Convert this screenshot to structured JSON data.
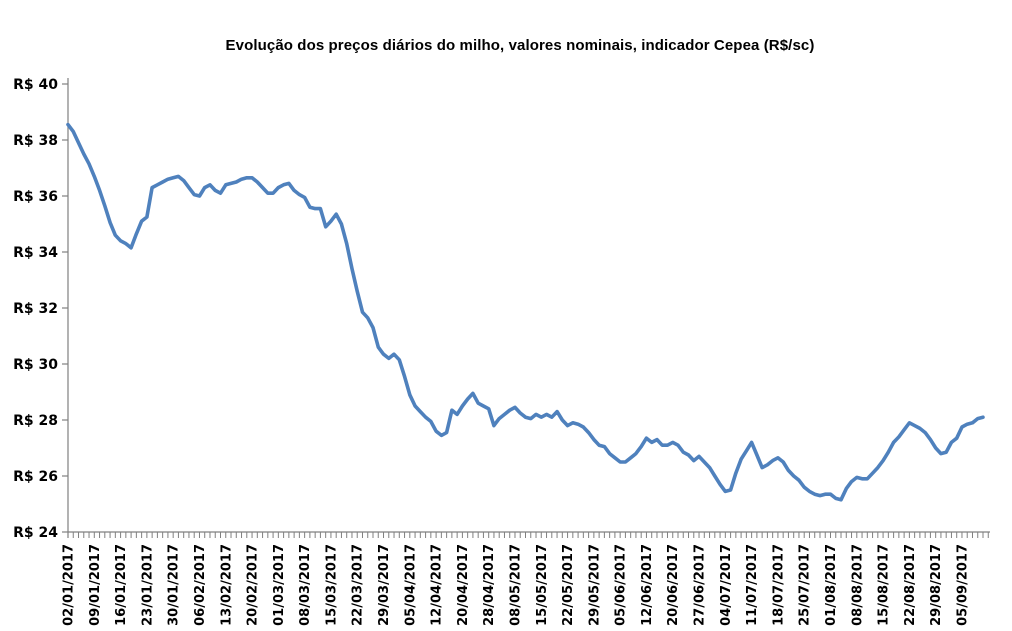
{
  "chart_data": {
    "type": "line",
    "title": "Evolução dos preços diários do milho, valores nominais, indicador Cepea (R$/sc)",
    "xlabel": "",
    "ylabel": "",
    "ylim": [
      24,
      40
    ],
    "y_tick_step": 2,
    "y_tick_labels": [
      "R$ 24",
      "R$ 26",
      "R$ 28",
      "R$ 30",
      "R$ 32",
      "R$ 34",
      "R$ 36",
      "R$ 38",
      "R$ 40"
    ],
    "grid": false,
    "legend": false,
    "x_labels": [
      "02/01/2017",
      "09/01/2017",
      "16/01/2017",
      "23/01/2017",
      "30/01/2017",
      "06/02/2017",
      "13/02/2017",
      "20/02/2017",
      "01/03/2017",
      "08/03/2017",
      "15/03/2017",
      "22/03/2017",
      "29/03/2017",
      "05/04/2017",
      "12/04/2017",
      "20/04/2017",
      "28/04/2017",
      "08/05/2017",
      "15/05/2017",
      "22/05/2017",
      "29/05/2017",
      "05/06/2017",
      "12/06/2017",
      "20/06/2017",
      "27/06/2017",
      "04/07/2017",
      "11/07/2017",
      "18/07/2017",
      "25/07/2017",
      "01/08/2017",
      "08/08/2017",
      "15/08/2017",
      "22/08/2017",
      "29/08/2017",
      "05/09/2017"
    ],
    "points_per_label": 5,
    "values": [
      38.55,
      38.3,
      37.9,
      37.5,
      37.15,
      36.7,
      36.2,
      35.65,
      35.05,
      34.6,
      34.4,
      34.3,
      34.15,
      34.65,
      35.1,
      35.25,
      36.3,
      36.4,
      36.5,
      36.6,
      36.65,
      36.7,
      36.55,
      36.3,
      36.05,
      36.0,
      36.3,
      36.4,
      36.2,
      36.1,
      36.4,
      36.45,
      36.5,
      36.6,
      36.65,
      36.65,
      36.5,
      36.3,
      36.1,
      36.1,
      36.3,
      36.4,
      36.45,
      36.2,
      36.05,
      35.95,
      35.6,
      35.55,
      35.55,
      34.9,
      35.1,
      35.35,
      35.0,
      34.3,
      33.4,
      32.6,
      31.85,
      31.65,
      31.3,
      30.6,
      30.35,
      30.2,
      30.35,
      30.15,
      29.55,
      28.9,
      28.5,
      28.3,
      28.1,
      27.95,
      27.6,
      27.45,
      27.55,
      28.35,
      28.2,
      28.5,
      28.75,
      28.95,
      28.6,
      28.5,
      28.4,
      27.8,
      28.05,
      28.2,
      28.35,
      28.45,
      28.25,
      28.1,
      28.05,
      28.2,
      28.1,
      28.2,
      28.1,
      28.3,
      28.0,
      27.8,
      27.9,
      27.85,
      27.75,
      27.55,
      27.3,
      27.1,
      27.05,
      26.8,
      26.65,
      26.5,
      26.5,
      26.65,
      26.8,
      27.05,
      27.35,
      27.2,
      27.3,
      27.1,
      27.1,
      27.2,
      27.1,
      26.85,
      26.75,
      26.55,
      26.7,
      26.5,
      26.3,
      26.0,
      25.7,
      25.45,
      25.5,
      26.1,
      26.6,
      26.9,
      27.2,
      26.75,
      26.3,
      26.4,
      26.55,
      26.65,
      26.5,
      26.2,
      26.0,
      25.85,
      25.6,
      25.45,
      25.35,
      25.3,
      25.35,
      25.35,
      25.2,
      25.15,
      25.55,
      25.8,
      25.95,
      25.9,
      25.9,
      26.1,
      26.3,
      26.55,
      26.85,
      27.2,
      27.4,
      27.65,
      27.9,
      27.8,
      27.7,
      27.55,
      27.3,
      27.0,
      26.8,
      26.85,
      27.2,
      27.35,
      27.75,
      27.85,
      27.9,
      28.05,
      28.1
    ]
  },
  "style": {
    "line_color": "#4F81BD",
    "axis_color": "#808080",
    "label_color": "#000000",
    "background": "#FFFFFF"
  }
}
